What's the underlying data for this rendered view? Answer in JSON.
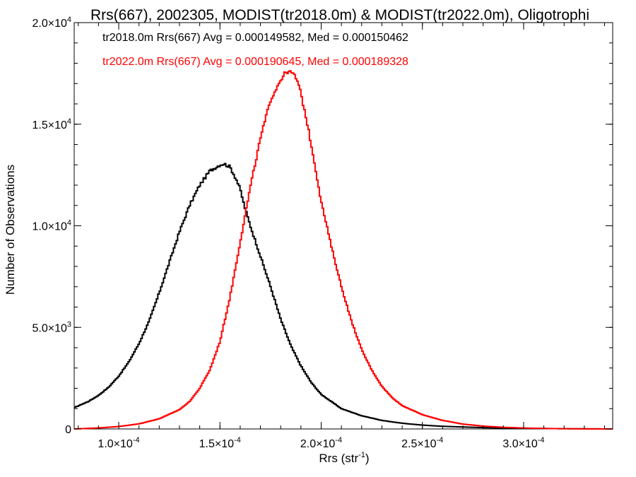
{
  "chart_data": {
    "type": "histogram",
    "title": "Rrs(667), 2002305, MODIST(tr2018.0m) & MODIST(tr2022.0m), Oligotrophi",
    "xlabel": "Rrs (str",
    "xlabel_sup": "-1",
    "xlabel_close": ")",
    "ylabel": "Number of Observations",
    "xlim": [
      7.8e-05,
      0.000344
    ],
    "ylim": [
      0,
      20000
    ],
    "grid": false,
    "legend_position": "top-left",
    "x_ticks": [
      {
        "value": 0.0001,
        "mant": "1.0",
        "exp": "-4"
      },
      {
        "value": 0.00015,
        "mant": "1.5",
        "exp": "-4"
      },
      {
        "value": 0.0002,
        "mant": "2.0",
        "exp": "-4"
      },
      {
        "value": 0.00025,
        "mant": "2.5",
        "exp": "-4"
      },
      {
        "value": 0.0003,
        "mant": "3.0",
        "exp": "-4"
      }
    ],
    "y_ticks": [
      {
        "value": 0,
        "mant": "0",
        "exp": ""
      },
      {
        "value": 5000,
        "mant": "5.0",
        "exp": "3"
      },
      {
        "value": 10000,
        "mant": "1.0",
        "exp": "4"
      },
      {
        "value": 15000,
        "mant": "1.5",
        "exp": "4"
      },
      {
        "value": 20000,
        "mant": "2.0",
        "exp": "4"
      }
    ],
    "series": [
      {
        "label": "tr2018.0m Rrs(667) Avg = 0.000149582, Med = 0.000150462",
        "color": "#000000",
        "x": [
          7.8e-05,
          8.5e-05,
          9e-05,
          9.5e-05,
          0.0001,
          0.000105,
          0.00011,
          0.000115,
          0.00012,
          0.000125,
          0.00013,
          0.000135,
          0.00014,
          0.000145,
          0.00015,
          0.000152,
          0.000155,
          0.000158,
          0.00016,
          0.000162,
          0.000165,
          0.00017,
          0.000175,
          0.00018,
          0.000185,
          0.00019,
          0.000195,
          0.0002,
          0.00021,
          0.00022,
          0.00023,
          0.00024,
          0.00025,
          0.00026,
          0.00028,
          0.0003,
          0.00032,
          0.000344
        ],
        "y": [
          1050,
          1350,
          1650,
          2050,
          2600,
          3300,
          4200,
          5300,
          6700,
          8200,
          9700,
          11000,
          12000,
          12700,
          13000,
          13050,
          12900,
          12300,
          11800,
          11000,
          10000,
          8500,
          7000,
          5400,
          4100,
          3100,
          2300,
          1700,
          1000,
          650,
          420,
          280,
          190,
          130,
          65,
          30,
          12,
          0
        ]
      },
      {
        "label": "tr2022.0m Rrs(667) Avg = 0.000190645, Med = 0.000189328",
        "color": "#ff0000",
        "x": [
          7.8e-05,
          9e-05,
          0.0001,
          0.00011,
          0.00012,
          0.00013,
          0.000135,
          0.00014,
          0.000145,
          0.00015,
          0.000155,
          0.00016,
          0.000165,
          0.00017,
          0.000175,
          0.00018,
          0.000183,
          0.000186,
          0.000188,
          0.00019,
          0.000193,
          0.000196,
          0.0002,
          0.000205,
          0.00021,
          0.000215,
          0.00022,
          0.000225,
          0.00023,
          0.000235,
          0.00024,
          0.00025,
          0.00026,
          0.00027,
          0.00028,
          0.00029,
          0.0003,
          0.00031,
          0.00032,
          0.00033,
          0.000344
        ],
        "y": [
          0,
          50,
          120,
          250,
          500,
          950,
          1350,
          2000,
          2900,
          4300,
          6500,
          9200,
          11900,
          14300,
          16200,
          17200,
          17600,
          17500,
          17200,
          16500,
          15100,
          13500,
          11200,
          9000,
          7000,
          5300,
          3900,
          2900,
          2100,
          1550,
          1150,
          700,
          420,
          240,
          140,
          80,
          45,
          25,
          12,
          5,
          0
        ]
      }
    ]
  }
}
